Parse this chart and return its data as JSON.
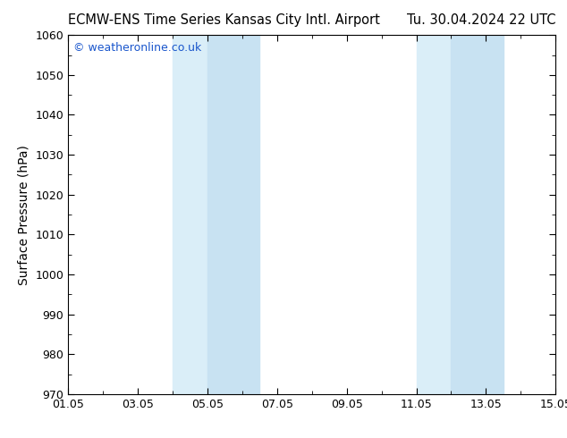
{
  "title_left": "ECMW-ENS Time Series Kansas City Intl. Airport",
  "title_right": "Tu. 30.04.2024 22 UTC",
  "ylabel": "Surface Pressure (hPa)",
  "ylim": [
    970,
    1060
  ],
  "yticks": [
    970,
    980,
    990,
    1000,
    1010,
    1020,
    1030,
    1040,
    1050,
    1060
  ],
  "xlim_start": 0,
  "xlim_end": 14,
  "xtick_positions": [
    0,
    2,
    4,
    6,
    8,
    10,
    12,
    14
  ],
  "xtick_labels": [
    "01.05",
    "03.05",
    "05.05",
    "07.05",
    "09.05",
    "11.05",
    "13.05",
    "15.05"
  ],
  "shaded_bands": [
    {
      "x_start": 3.0,
      "x_end": 4.0
    },
    {
      "x_start": 4.0,
      "x_end": 5.5
    },
    {
      "x_start": 10.0,
      "x_end": 11.0
    },
    {
      "x_start": 11.0,
      "x_end": 12.5
    }
  ],
  "shade_color_light": "#deeef8",
  "shade_color_dark": "#c8dff0",
  "watermark": "© weatheronline.co.uk",
  "watermark_color": "#1a56cc",
  "background_color": "#ffffff",
  "plot_bg_color": "#ffffff",
  "title_fontsize": 10.5,
  "axis_label_fontsize": 10,
  "tick_fontsize": 9,
  "watermark_fontsize": 9
}
